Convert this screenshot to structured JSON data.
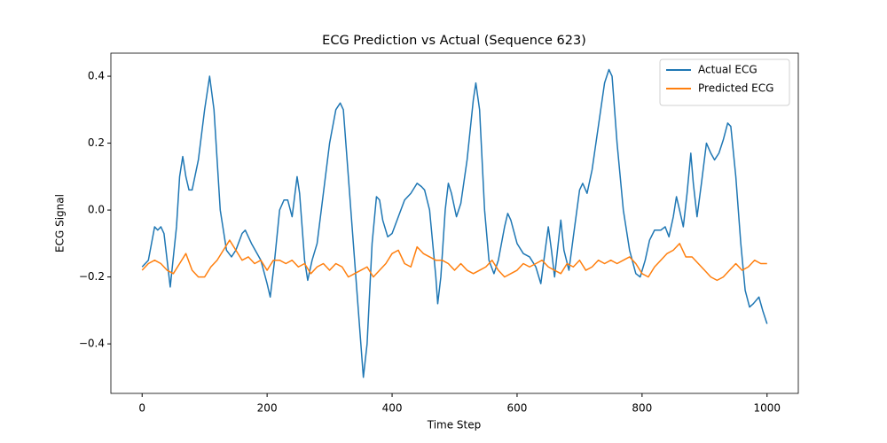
{
  "chart_data": {
    "type": "line",
    "title": "ECG Prediction vs Actual (Sequence 623)",
    "x_label": "Time Step",
    "y_label": "ECG Signal",
    "xlim": [
      -50,
      1050
    ],
    "ylim": [
      -0.548,
      0.469
    ],
    "xticks": [
      0,
      200,
      400,
      600,
      800,
      1000
    ],
    "yticks": [
      {
        "value": -0.4,
        "label": "−0.4"
      },
      {
        "value": -0.2,
        "label": "−0.2"
      },
      {
        "value": 0,
        "label": "0.0"
      },
      0.2,
      0.4
    ],
    "grid": false,
    "legend": "upper right",
    "series": [
      {
        "name": "Actual ECG",
        "color": "#1f77b4",
        "x": [
          0,
          10,
          20,
          25,
          30,
          35,
          45,
          55,
          60,
          65,
          70,
          75,
          80,
          90,
          100,
          108,
          115,
          125,
          135,
          143,
          150,
          160,
          165,
          175,
          190,
          200,
          205,
          212,
          220,
          227,
          233,
          240,
          248,
          252,
          260,
          265,
          272,
          280,
          290,
          300,
          310,
          317,
          322,
          330,
          340,
          350,
          354,
          360,
          368,
          375,
          380,
          385,
          393,
          400,
          410,
          420,
          430,
          440,
          447,
          452,
          460,
          470,
          473,
          478,
          485,
          490,
          495,
          503,
          510,
          520,
          530,
          534,
          540,
          548,
          555,
          563,
          570,
          580,
          585,
          590,
          600,
          610,
          620,
          630,
          638,
          645,
          650,
          655,
          660,
          667,
          670,
          675,
          683,
          690,
          700,
          705,
          712,
          720,
          730,
          740,
          747,
          752,
          760,
          770,
          780,
          790,
          797,
          805,
          812,
          820,
          830,
          837,
          843,
          850,
          855,
          860,
          866,
          872,
          878,
          882,
          888,
          895,
          903,
          910,
          916,
          923,
          930,
          937,
          942,
          950,
          958,
          965,
          972,
          978,
          987,
          993,
          1000
        ],
        "values": [
          -0.17,
          -0.15,
          -0.05,
          -0.06,
          -0.05,
          -0.07,
          -0.23,
          -0.05,
          0.1,
          0.16,
          0.1,
          0.06,
          0.06,
          0.15,
          0.3,
          0.4,
          0.3,
          0.0,
          -0.12,
          -0.14,
          -0.12,
          -0.07,
          -0.06,
          -0.1,
          -0.15,
          -0.22,
          -0.26,
          -0.15,
          0.0,
          0.03,
          0.03,
          -0.02,
          0.1,
          0.05,
          -0.15,
          -0.21,
          -0.15,
          -0.1,
          0.05,
          0.2,
          0.3,
          0.32,
          0.3,
          0.1,
          -0.15,
          -0.4,
          -0.5,
          -0.4,
          -0.1,
          0.04,
          0.03,
          -0.03,
          -0.08,
          -0.07,
          -0.02,
          0.03,
          0.05,
          0.08,
          0.07,
          0.06,
          0.0,
          -0.2,
          -0.28,
          -0.2,
          0.0,
          0.08,
          0.05,
          -0.02,
          0.02,
          0.15,
          0.33,
          0.38,
          0.3,
          0.0,
          -0.15,
          -0.19,
          -0.15,
          -0.05,
          -0.01,
          -0.03,
          -0.1,
          -0.13,
          -0.14,
          -0.17,
          -0.22,
          -0.12,
          -0.05,
          -0.12,
          -0.2,
          -0.08,
          -0.03,
          -0.12,
          -0.18,
          -0.08,
          0.06,
          0.08,
          0.05,
          0.12,
          0.25,
          0.38,
          0.42,
          0.4,
          0.2,
          0.0,
          -0.12,
          -0.19,
          -0.2,
          -0.15,
          -0.09,
          -0.06,
          -0.06,
          -0.05,
          -0.08,
          -0.02,
          0.04,
          0.0,
          -0.05,
          0.05,
          0.17,
          0.08,
          -0.02,
          0.08,
          0.2,
          0.17,
          0.15,
          0.17,
          0.21,
          0.26,
          0.25,
          0.1,
          -0.1,
          -0.24,
          -0.29,
          -0.28,
          -0.26,
          -0.3,
          -0.34
        ]
      },
      {
        "name": "Predicted ECG",
        "color": "#ff7f0e",
        "x": [
          0,
          10,
          20,
          30,
          40,
          50,
          60,
          70,
          80,
          90,
          100,
          110,
          120,
          130,
          140,
          150,
          160,
          170,
          180,
          190,
          200,
          210,
          220,
          230,
          240,
          250,
          260,
          270,
          280,
          290,
          300,
          310,
          320,
          330,
          340,
          350,
          360,
          370,
          380,
          390,
          400,
          410,
          420,
          430,
          440,
          450,
          460,
          470,
          480,
          490,
          500,
          510,
          520,
          530,
          540,
          550,
          560,
          570,
          580,
          590,
          600,
          610,
          620,
          630,
          640,
          650,
          660,
          670,
          680,
          690,
          700,
          710,
          720,
          730,
          740,
          750,
          760,
          770,
          780,
          790,
          800,
          810,
          820,
          830,
          840,
          850,
          860,
          870,
          880,
          890,
          900,
          910,
          920,
          930,
          940,
          950,
          960,
          970,
          980,
          990,
          1000
        ],
        "values": [
          -0.18,
          -0.16,
          -0.15,
          -0.16,
          -0.18,
          -0.19,
          -0.16,
          -0.13,
          -0.18,
          -0.2,
          -0.2,
          -0.17,
          -0.15,
          -0.12,
          -0.09,
          -0.12,
          -0.15,
          -0.14,
          -0.16,
          -0.15,
          -0.18,
          -0.15,
          -0.15,
          -0.16,
          -0.15,
          -0.17,
          -0.16,
          -0.19,
          -0.17,
          -0.16,
          -0.18,
          -0.16,
          -0.17,
          -0.2,
          -0.19,
          -0.18,
          -0.17,
          -0.2,
          -0.18,
          -0.16,
          -0.13,
          -0.12,
          -0.16,
          -0.17,
          -0.11,
          -0.13,
          -0.14,
          -0.15,
          -0.15,
          -0.16,
          -0.18,
          -0.16,
          -0.18,
          -0.19,
          -0.18,
          -0.17,
          -0.15,
          -0.18,
          -0.2,
          -0.19,
          -0.18,
          -0.16,
          -0.17,
          -0.16,
          -0.15,
          -0.17,
          -0.18,
          -0.19,
          -0.16,
          -0.17,
          -0.15,
          -0.18,
          -0.17,
          -0.15,
          -0.16,
          -0.15,
          -0.16,
          -0.15,
          -0.14,
          -0.16,
          -0.19,
          -0.2,
          -0.17,
          -0.15,
          -0.13,
          -0.12,
          -0.1,
          -0.14,
          -0.14,
          -0.16,
          -0.18,
          -0.2,
          -0.21,
          -0.2,
          -0.18,
          -0.16,
          -0.18,
          -0.17,
          -0.15,
          -0.16,
          -0.16
        ]
      }
    ]
  }
}
